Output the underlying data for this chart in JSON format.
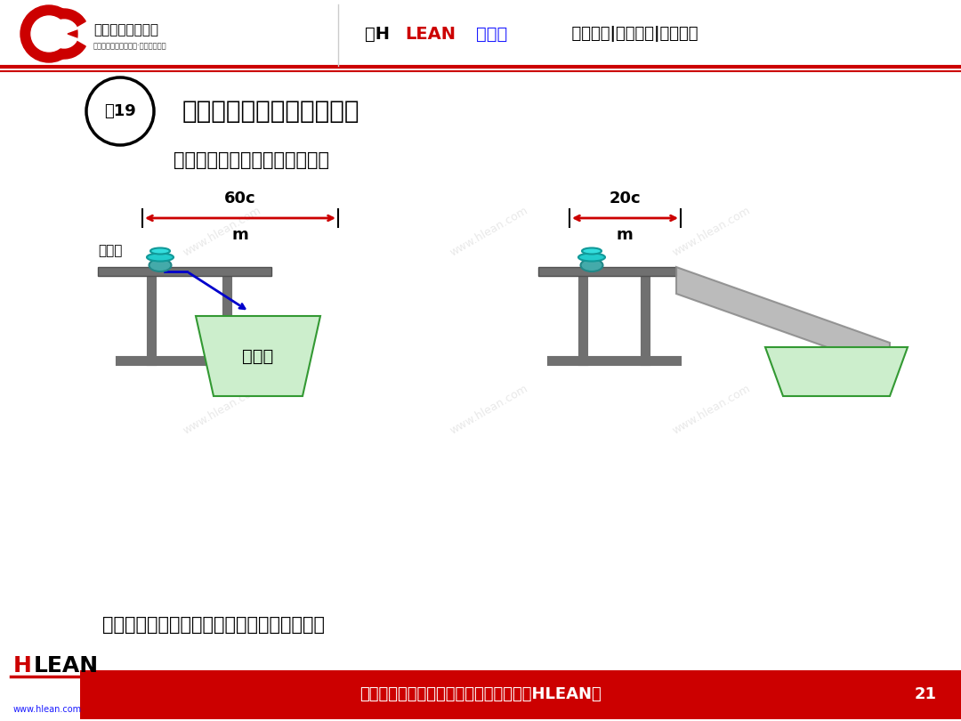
{
  "title_example": "例19",
  "title_main": "利用重力和其它力取送材料",
  "subtitle": "利用斜槽缩短完成品搬运的距离",
  "label_worktable": "作业台",
  "label_box": "工件箱",
  "label_distance_left": "60c\nm",
  "label_distance_right": "20c\nm",
  "footer_text": "做行业标杆，找精弘益；要幸福高效，用HLEAN！",
  "footer_page": "21",
  "footer_slogan2": "www.hlean.com",
  "header_title": "【HLEAN学堂】  精益生产|智能制造|管理前沿",
  "other_forces": "其它力：磁力、气压、油压、弹力、点滴装置",
  "bg_color": "#ffffff",
  "header_bg": "#ffffff",
  "header_line_color": "#cc0000",
  "footer_bg": "#cc0000",
  "table_color": "#808080",
  "box_fill": "#cceecc",
  "box_edge": "#339933",
  "chute_fill": "#b0b0b0",
  "chute_edge": "#808080",
  "arrow_left_color": "#cc0000",
  "arrow_right_color": "#cc0000",
  "blue_arrow_color": "#0000cc",
  "cyan_part_color": "#00cccc",
  "circle_color": "#6699cc"
}
